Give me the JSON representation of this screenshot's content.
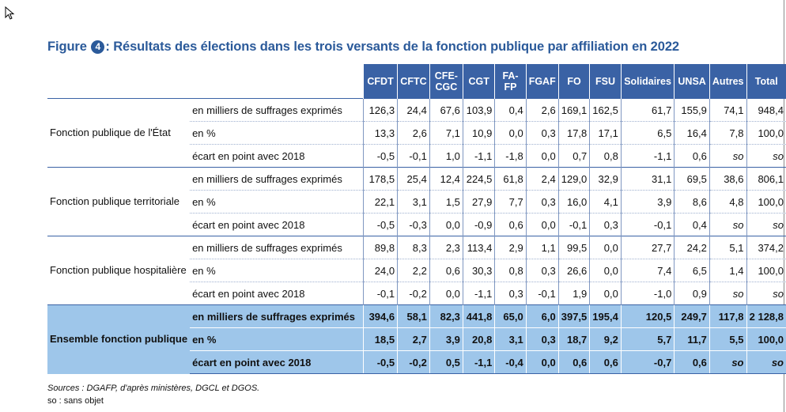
{
  "title": {
    "prefix": "Figure",
    "number": "4",
    "text": ": Résultats des élections dans les trois versants de la fonction publique par affiliation en 2022"
  },
  "columns": [
    "CFDT",
    "CFTC",
    "CFE-CGC",
    "CGT",
    "FA-FP",
    "FGAF",
    "FO",
    "FSU",
    "Solidaires",
    "UNSA",
    "Autres",
    "Total"
  ],
  "groups": [
    {
      "label": "Fonction publique de l'État",
      "rows": [
        {
          "metric": "en milliers de suffrages exprimés",
          "values": [
            "126,3",
            "24,4",
            "67,6",
            "103,9",
            "0,4",
            "2,6",
            "169,1",
            "162,5",
            "61,7",
            "155,9",
            "74,1",
            "948,4"
          ]
        },
        {
          "metric": "en %",
          "values": [
            "13,3",
            "2,6",
            "7,1",
            "10,9",
            "0,0",
            "0,3",
            "17,8",
            "17,1",
            "6,5",
            "16,4",
            "7,8",
            "100,0"
          ]
        },
        {
          "metric": "écart en point avec 2018",
          "values": [
            "-0,5",
            "-0,1",
            "1,0",
            "-1,1",
            "-1,8",
            "0,0",
            "0,7",
            "0,8",
            "-1,1",
            "0,6",
            "so",
            "so"
          ]
        }
      ]
    },
    {
      "label": "Fonction publique territoriale",
      "rows": [
        {
          "metric": "en milliers de suffrages exprimés",
          "values": [
            "178,5",
            "25,4",
            "12,4",
            "224,5",
            "61,8",
            "2,4",
            "129,0",
            "32,9",
            "31,1",
            "69,5",
            "38,6",
            "806,1"
          ]
        },
        {
          "metric": "en %",
          "values": [
            "22,1",
            "3,1",
            "1,5",
            "27,9",
            "7,7",
            "0,3",
            "16,0",
            "4,1",
            "3,9",
            "8,6",
            "4,8",
            "100,0"
          ]
        },
        {
          "metric": "écart en point avec 2018",
          "values": [
            "-0,5",
            "-0,3",
            "0,0",
            "-0,9",
            "0,6",
            "0,0",
            "-0,1",
            "0,3",
            "-0,1",
            "0,4",
            "so",
            "so"
          ]
        }
      ]
    },
    {
      "label": "Fonction publique hospitalière",
      "rows": [
        {
          "metric": "en milliers de suffrages exprimés",
          "values": [
            "89,8",
            "8,3",
            "2,3",
            "113,4",
            "2,9",
            "1,1",
            "99,5",
            "0,0",
            "27,7",
            "24,2",
            "5,1",
            "374,2"
          ]
        },
        {
          "metric": "en %",
          "values": [
            "24,0",
            "2,2",
            "0,6",
            "30,3",
            "0,8",
            "0,3",
            "26,6",
            "0,0",
            "7,4",
            "6,5",
            "1,4",
            "100,0"
          ]
        },
        {
          "metric": "écart en point avec 2018",
          "values": [
            "-0,1",
            "-0,2",
            "0,0",
            "-1,1",
            "0,3",
            "-0,1",
            "1,9",
            "0,0",
            "-1,0",
            "0,9",
            "so",
            "so"
          ]
        }
      ]
    },
    {
      "label": "Ensemble fonction publique",
      "highlight": true,
      "rows": [
        {
          "metric": "en milliers de suffrages exprimés",
          "values": [
            "394,6",
            "58,1",
            "82,3",
            "441,8",
            "65,0",
            "6,0",
            "397,5",
            "195,4",
            "120,5",
            "249,7",
            "117,8",
            "2 128,8"
          ]
        },
        {
          "metric": "en %",
          "values": [
            "18,5",
            "2,7",
            "3,9",
            "20,8",
            "3,1",
            "0,3",
            "18,7",
            "9,2",
            "5,7",
            "11,7",
            "5,5",
            "100,0"
          ]
        },
        {
          "metric": "écart en point avec 2018",
          "values": [
            "-0,5",
            "-0,2",
            "0,5",
            "-1,1",
            "-0,4",
            "0,0",
            "0,6",
            "0,6",
            "-0,7",
            "0,6",
            "so",
            "so"
          ]
        }
      ]
    }
  ],
  "notes": {
    "sources": "Sources : DGAFP, d'après ministères, DGCL et DGOS.",
    "so": "so : sans objet"
  },
  "colors": {
    "title": "#2b5a9a",
    "header_bg": "#3a62a5",
    "highlight_bg": "#9ec6ea"
  }
}
